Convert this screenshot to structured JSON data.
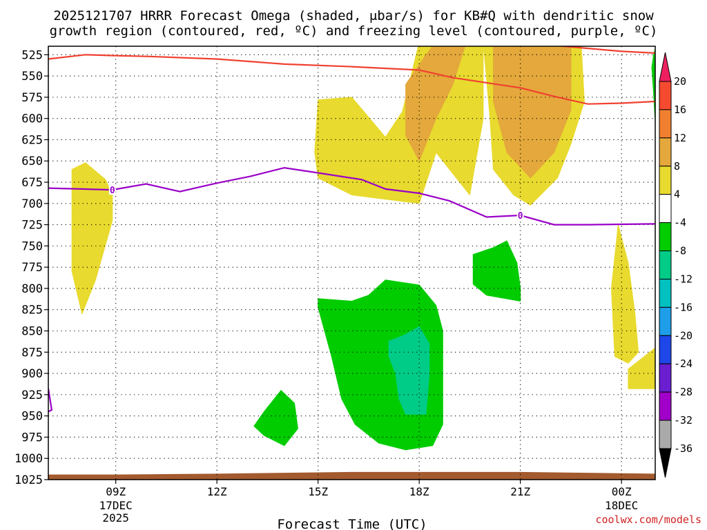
{
  "chart_data": {
    "type": "heatmap",
    "title_line1": "2025121707 HRRR Forecast Omega (shaded, μbar/s) for KB#Q with dendritic snow",
    "title_line2": "growth region (contoured, red, ºC) and freezing level (contoured, purple, ºC)",
    "xlabel": "Forecast Time (UTC)",
    "credit": "coolwx.com/models",
    "x_ticks": [
      {
        "t": 9,
        "label": "09Z",
        "sub1": "17DEC",
        "sub2": "2025"
      },
      {
        "t": 12,
        "label": "12Z",
        "sub1": "",
        "sub2": ""
      },
      {
        "t": 15,
        "label": "15Z",
        "sub1": "",
        "sub2": ""
      },
      {
        "t": 18,
        "label": "18Z",
        "sub1": "",
        "sub2": ""
      },
      {
        "t": 21,
        "label": "21Z",
        "sub1": "",
        "sub2": ""
      },
      {
        "t": 24,
        "label": "00Z",
        "sub1": "18DEC",
        "sub2": ""
      }
    ],
    "xlim": [
      7,
      25
    ],
    "y_ticks": [
      525,
      550,
      575,
      600,
      625,
      650,
      675,
      700,
      725,
      750,
      775,
      800,
      825,
      850,
      875,
      900,
      925,
      950,
      975,
      1000,
      1025
    ],
    "ylim": [
      515,
      1025
    ],
    "y_inverted": true,
    "colorbar": {
      "labels": [
        "20",
        "16",
        "12",
        "8",
        "4",
        "-4",
        "-8",
        "-12",
        "-16",
        "-20",
        "-24",
        "-28",
        "-32",
        "-36"
      ],
      "colors": [
        "#ee1f5f",
        "#f64a30",
        "#f08030",
        "#e4a83c",
        "#e8da2e",
        "#ffffff",
        "#00cc00",
        "#00cc88",
        "#00c0c0",
        "#1e9ee8",
        "#1e46e8",
        "#6a1ed0",
        "#a000c8",
        "#aaaaaa",
        "#000000"
      ]
    },
    "series": [
      {
        "name": "dendritic snow growth region",
        "color": "#f04030",
        "lines": [
          [
            [
              7,
              530
            ],
            [
              8.1,
              525
            ],
            [
              8.9,
              526
            ],
            [
              10,
              527
            ],
            [
              12,
              530
            ],
            [
              14,
              536
            ],
            [
              16,
              539
            ],
            [
              18,
              543
            ],
            [
              19,
              552
            ],
            [
              21,
              564
            ],
            [
              22,
              574
            ],
            [
              23,
              583
            ],
            [
              24,
              582
            ],
            [
              25,
              580
            ]
          ],
          [
            [
              22,
              514
            ],
            [
              24,
              521
            ],
            [
              25,
              523
            ]
          ]
        ]
      },
      {
        "name": "freezing level",
        "color": "#9a00c8",
        "lines": [
          [
            [
              7,
              682
            ],
            [
              8.9,
              684
            ],
            [
              9.9,
              677
            ],
            [
              10.9,
              686
            ],
            [
              12,
              676
            ],
            [
              13,
              668
            ],
            [
              14,
              658
            ],
            [
              15,
              664
            ],
            [
              16.3,
              672
            ],
            [
              17,
              683
            ],
            [
              18,
              688
            ],
            [
              18.9,
              697
            ],
            [
              20,
              716
            ],
            [
              21,
              714
            ],
            [
              22,
              725
            ],
            [
              23,
              725
            ],
            [
              25,
              724
            ]
          ],
          [
            [
              7,
              918
            ],
            [
              7.1,
              943
            ],
            [
              7,
              945
            ]
          ]
        ],
        "labels": [
          {
            "t": 8.9,
            "p": 684,
            "text": "0"
          },
          {
            "t": 21,
            "p": 714,
            "text": "0"
          }
        ]
      }
    ],
    "omega_regions": [
      {
        "color": "#e8da2e",
        "poly": [
          [
            8,
            830
          ],
          [
            7.7,
            780
          ],
          [
            7.7,
            660
          ],
          [
            8.1,
            652
          ],
          [
            8.7,
            672
          ],
          [
            8.9,
            690
          ],
          [
            8.9,
            720
          ],
          [
            8.4,
            790
          ]
        ]
      },
      {
        "color": "#e8da2e",
        "poly": [
          [
            15,
            578
          ],
          [
            16,
            575
          ],
          [
            17,
            622
          ],
          [
            17.5,
            592
          ],
          [
            18,
            510
          ],
          [
            19.9,
            510
          ],
          [
            19.9,
            600
          ],
          [
            19.5,
            690
          ],
          [
            18.5,
            640
          ],
          [
            18,
            700
          ],
          [
            16,
            690
          ],
          [
            15,
            670
          ],
          [
            14.9,
            640
          ]
        ]
      },
      {
        "color": "#e8da2e",
        "poly": [
          [
            19.9,
            510
          ],
          [
            22.8,
            510
          ],
          [
            22.9,
            580
          ],
          [
            22.5,
            630
          ],
          [
            22.1,
            670
          ],
          [
            21.3,
            702
          ],
          [
            20.8,
            690
          ],
          [
            20.2,
            660
          ],
          [
            20.1,
            600
          ]
        ]
      },
      {
        "color": "#e4a83c",
        "poly": [
          [
            18.2,
            525
          ],
          [
            18.5,
            510
          ],
          [
            19.4,
            510
          ],
          [
            19.0,
            560
          ],
          [
            18.5,
            600
          ],
          [
            18,
            650
          ],
          [
            17.6,
            620
          ],
          [
            17.6,
            560
          ]
        ]
      },
      {
        "color": "#e4a83c",
        "poly": [
          [
            21.3,
            510
          ],
          [
            22.5,
            510
          ],
          [
            22.5,
            590
          ],
          [
            22.0,
            640
          ],
          [
            21.3,
            670
          ],
          [
            20.6,
            640
          ],
          [
            20.2,
            580
          ],
          [
            20.2,
            510
          ]
        ]
      },
      {
        "color": "#e8da2e",
        "poly": [
          [
            23.9,
            725
          ],
          [
            24.2,
            770
          ],
          [
            24.4,
            830
          ],
          [
            24.5,
            875
          ],
          [
            24.2,
            888
          ],
          [
            23.8,
            880
          ],
          [
            23.7,
            800
          ]
        ]
      },
      {
        "color": "#e8da2e",
        "poly": [
          [
            25,
            870
          ],
          [
            24.2,
            895
          ],
          [
            24.2,
            918
          ],
          [
            25,
            918
          ]
        ]
      },
      {
        "color": "#00cc00",
        "poly": [
          [
            20.2,
            752
          ],
          [
            20.6,
            744
          ],
          [
            20.9,
            770
          ],
          [
            21,
            800
          ],
          [
            21,
            815
          ],
          [
            20,
            808
          ],
          [
            19.6,
            795
          ],
          [
            19.6,
            760
          ]
        ]
      },
      {
        "color": "#00cc00",
        "poly": [
          [
            15,
            812
          ],
          [
            16,
            815
          ],
          [
            16.5,
            808
          ],
          [
            17,
            790
          ],
          [
            18,
            796
          ],
          [
            18.5,
            820
          ],
          [
            18.7,
            850
          ],
          [
            18.7,
            900
          ],
          [
            18.7,
            960
          ],
          [
            18.4,
            985
          ],
          [
            17.6,
            990
          ],
          [
            16.8,
            982
          ],
          [
            16.1,
            960
          ],
          [
            15.7,
            930
          ],
          [
            15.4,
            880
          ],
          [
            15,
            822
          ]
        ]
      },
      {
        "color": "#00cc88",
        "poly": [
          [
            17.1,
            862
          ],
          [
            17.5,
            856
          ],
          [
            18,
            845
          ],
          [
            18.3,
            865
          ],
          [
            18.3,
            900
          ],
          [
            18.2,
            948
          ],
          [
            17.6,
            948
          ],
          [
            17.4,
            930
          ],
          [
            17.3,
            900
          ],
          [
            17.1,
            880
          ]
        ]
      },
      {
        "color": "#00cc00",
        "poly": [
          [
            13.1,
            962
          ],
          [
            13.4,
            945
          ],
          [
            13.9,
            920
          ],
          [
            14.3,
            935
          ],
          [
            14.4,
            965
          ],
          [
            14,
            985
          ],
          [
            13.4,
            973
          ]
        ]
      },
      {
        "color": "#00cc00",
        "poly": [
          [
            25,
            518
          ],
          [
            24.95,
            525
          ],
          [
            24.9,
            540
          ],
          [
            24.95,
            570
          ],
          [
            25,
            605
          ]
        ]
      }
    ],
    "terrain": {
      "color": "#a35a2e",
      "top": [
        [
          7,
          1019
        ],
        [
          9,
          1019
        ],
        [
          12,
          1018
        ],
        [
          14,
          1017
        ],
        [
          16,
          1016
        ],
        [
          18,
          1016
        ],
        [
          21,
          1016
        ],
        [
          23,
          1017
        ],
        [
          25,
          1018
        ]
      ]
    }
  }
}
